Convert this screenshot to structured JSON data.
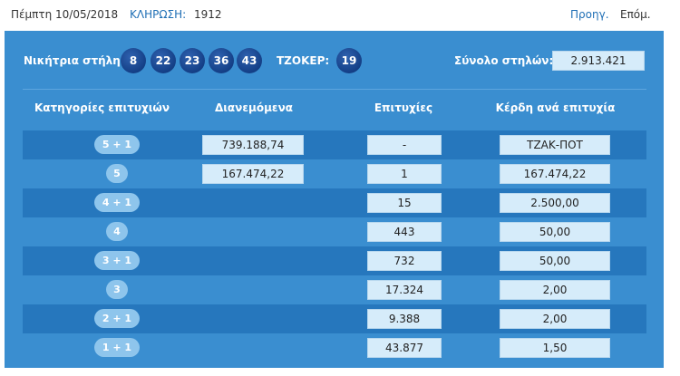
{
  "header": {
    "date": "Πέμπτη 10/05/2018",
    "draw_label": "ΚΛΗΡΩΣΗ:",
    "draw_number": "1912",
    "prev": "Προηγ.",
    "next": "Επόμ."
  },
  "result": {
    "winning_label": "Νικήτρια στήλη:",
    "numbers": [
      "8",
      "22",
      "23",
      "36",
      "43"
    ],
    "joker_label": "ΤΖΟΚΕΡ:",
    "joker": "19",
    "total_label": "Σύνολο στηλών:",
    "total": "2.913.421"
  },
  "table": {
    "headers": [
      "Κατηγορίες επιτυχιών",
      "Διανεμόμενα",
      "Επιτυχίες",
      "Κέρδη ανά επιτυχία"
    ],
    "rows": [
      {
        "category": "5 + 1",
        "distributed": "739.188,74",
        "winners": "-",
        "gain": "ΤΖΑΚ-ΠΟΤ"
      },
      {
        "category": "5",
        "distributed": "167.474,22",
        "winners": "1",
        "gain": "167.474,22"
      },
      {
        "category": "4 + 1",
        "distributed": "",
        "winners": "15",
        "gain": "2.500,00"
      },
      {
        "category": "4",
        "distributed": "",
        "winners": "443",
        "gain": "50,00"
      },
      {
        "category": "3 + 1",
        "distributed": "",
        "winners": "732",
        "gain": "50,00"
      },
      {
        "category": "3",
        "distributed": "",
        "winners": "17.324",
        "gain": "2,00"
      },
      {
        "category": "2 + 1",
        "distributed": "",
        "winners": "9.388",
        "gain": "2,00"
      },
      {
        "category": "1 + 1",
        "distributed": "",
        "winners": "43.877",
        "gain": "1,50"
      }
    ]
  },
  "colors": {
    "panel": "#3a8ed0",
    "row_dark": "#2677bd",
    "ball": "#143f86",
    "link": "#1f6fb5"
  }
}
